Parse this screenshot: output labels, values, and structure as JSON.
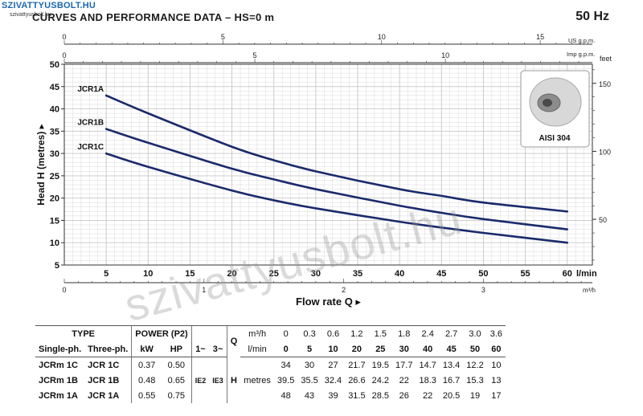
{
  "logo": {
    "name": "SZIVATTYUSBOLT.HU",
    "sub": "szivattyusbolt.hu"
  },
  "title": "CURVES AND PERFORMANCE DATA  –  HS=0 m",
  "frequency": "50 Hz",
  "watermark": "szivattyusbolt.hu",
  "inset_label": "AISI 304",
  "chart_data": {
    "type": "line",
    "ylabel": "Head H (metres)",
    "xlabel": "Flow rate Q",
    "y_unit_right": "feet",
    "x_unit_lmin": "l/min",
    "x_unit_m3h": "m³/h",
    "x_unit_usgpm": "US g.p.m.",
    "x_unit_impgpm": "Imp g.p.m.",
    "ylim": [
      5,
      50
    ],
    "xlim": [
      0,
      63
    ],
    "y_ticks": [
      5,
      10,
      15,
      20,
      25,
      30,
      35,
      40,
      45,
      50
    ],
    "x_ticks_lmin": [
      5,
      10,
      15,
      20,
      25,
      30,
      35,
      40,
      45,
      50,
      55,
      60
    ],
    "x_ticks_m3h": [
      0,
      1,
      2,
      3
    ],
    "x_ticks_usgpm": [
      0,
      5,
      10,
      15
    ],
    "x_ticks_impgpm": [
      0,
      5,
      10
    ],
    "y_ticks_feet": [
      50,
      100,
      150
    ],
    "grid": true,
    "x": [
      5,
      10,
      20,
      25,
      30,
      40,
      45,
      50,
      60
    ],
    "series": [
      {
        "name": "JCR1A",
        "values": [
          43,
          39,
          31.5,
          28.5,
          26,
          22,
          20.5,
          19,
          17
        ]
      },
      {
        "name": "JCR1B",
        "values": [
          35.5,
          32.4,
          26.6,
          24.2,
          22,
          18.3,
          16.7,
          15.3,
          13
        ]
      },
      {
        "name": "JCR1C",
        "values": [
          30,
          27,
          21.7,
          19.5,
          17.7,
          14.7,
          13.4,
          12.2,
          10
        ]
      }
    ]
  },
  "table": {
    "type_h": "TYPE",
    "power_h": "POWER (P2)",
    "q_h": "Q",
    "single_h": "Single-ph.",
    "three_h": "Three-ph.",
    "kw_h": "kW",
    "hp_h": "HP",
    "phase1_h": "1~",
    "phase3_h": "3~",
    "q_m3h_unit": "m³/h",
    "q_lmin_unit": "l/min",
    "h_label": "H",
    "h_unit": "metres",
    "ie1": "IE2",
    "ie3": "IE3",
    "q_m3h": [
      "0",
      "0.3",
      "0.6",
      "1.2",
      "1.5",
      "1.8",
      "2.4",
      "2.7",
      "3.0",
      "3.6"
    ],
    "q_lmin": [
      "0",
      "5",
      "10",
      "20",
      "25",
      "30",
      "40",
      "45",
      "50",
      "60"
    ],
    "rows": [
      {
        "single": "JCRm 1C",
        "three": "JCR 1C",
        "kw": "0.37",
        "hp": "0.50",
        "h": [
          "34",
          "30",
          "27",
          "21.7",
          "19.5",
          "17.7",
          "14.7",
          "13.4",
          "12.2",
          "10"
        ]
      },
      {
        "single": "JCRm 1B",
        "three": "JCR 1B",
        "kw": "0.48",
        "hp": "0.65",
        "h": [
          "39.5",
          "35.5",
          "32.4",
          "26.6",
          "24.2",
          "22",
          "18.3",
          "16.7",
          "15.3",
          "13"
        ]
      },
      {
        "single": "JCRm 1A",
        "three": "JCR 1A",
        "kw": "0.55",
        "hp": "0.75",
        "h": [
          "48",
          "43",
          "39",
          "31.5",
          "28.5",
          "26",
          "22",
          "20.5",
          "19",
          "17"
        ]
      }
    ]
  },
  "colors": {
    "curve": "#1a2a6c",
    "grid": "#c8c8c8",
    "axis": "#333333",
    "accent": "#1a66b3"
  }
}
